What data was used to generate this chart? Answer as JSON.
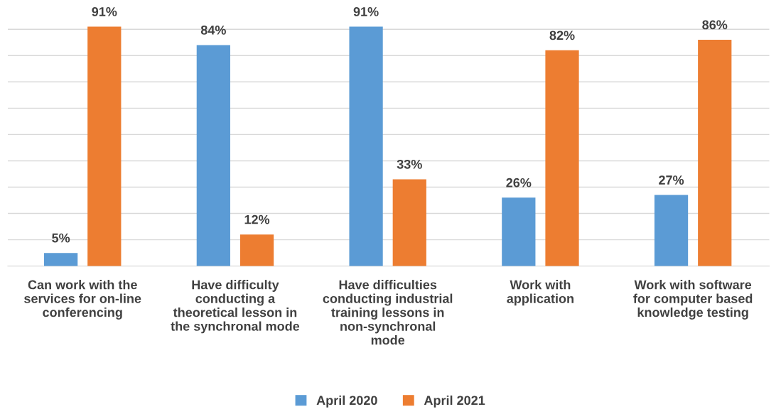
{
  "chart_data": {
    "type": "bar",
    "categories": [
      "Can work with the\nservices for on-line\nconferencing",
      "Have difficulty\nconducting a\ntheoretical lesson in\nthe synchronal mode",
      "Have difficulties\nconducting industrial\ntraining lessons in\nnon-synchronal\nmode",
      "Work with\napplication",
      "Work with software\nfor computer based\nknowledge testing"
    ],
    "series": [
      {
        "name": "April 2020",
        "color": "#5b9bd5",
        "values": [
          5,
          84,
          91,
          26,
          27
        ],
        "value_labels": [
          "5%",
          "84%",
          "91%",
          "26%",
          "27%"
        ]
      },
      {
        "name": "April 2021",
        "color": "#ed7d31",
        "values": [
          91,
          12,
          33,
          82,
          86
        ],
        "value_labels": [
          "91%",
          "12%",
          "33%",
          "82%",
          "86%"
        ]
      }
    ],
    "grid": "y",
    "legend": "bottom",
    "tick_labels": "x"
  }
}
